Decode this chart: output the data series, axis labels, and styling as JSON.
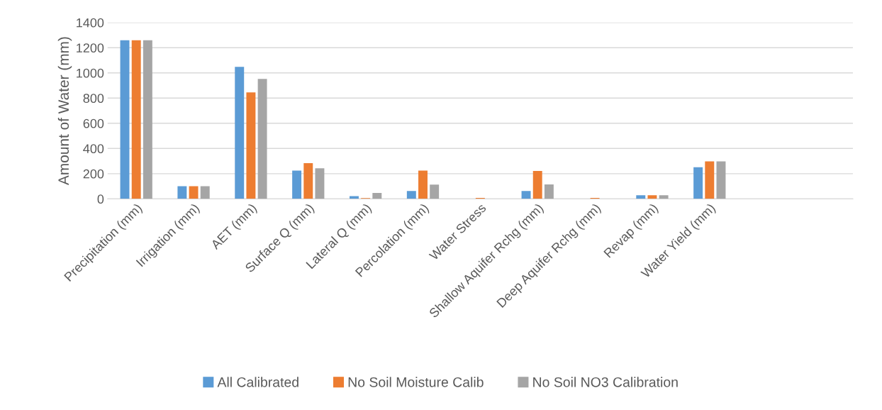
{
  "chart_data": {
    "type": "bar",
    "ylabel": "Amount of Water (mm)",
    "categories": [
      "Precipitation (mm)",
      "Irrigation (mm)",
      "AET (mm)",
      "Surface Q (mm)",
      "Lateral Q (mm)",
      "Percolation (mm)",
      "Water Stress",
      "Shallow Aquifer Rchg (mm)",
      "Deep Aquifer Rchg (mm)",
      "Revap (mm)",
      "Water Yield (mm)",
      null,
      null
    ],
    "series": [
      {
        "name": "All Calibrated",
        "color": "#5b9bd5",
        "values": [
          1260,
          100,
          1048,
          224,
          21,
          62,
          0,
          63,
          0,
          28,
          251,
          null,
          null
        ]
      },
      {
        "name": "No Soil Moisture Calib",
        "color": "#ed7d31",
        "values": [
          1260,
          100,
          845,
          283,
          6,
          224,
          7,
          221,
          7,
          28,
          298,
          null,
          null
        ]
      },
      {
        "name": "No Soil NO3 Calibration",
        "color": "#a5a5a5",
        "values": [
          1260,
          100,
          952,
          242,
          47,
          113,
          0,
          114,
          0,
          28,
          298,
          null,
          null
        ]
      }
    ],
    "ylim": [
      0,
      1400
    ],
    "yticks": [
      0,
      200,
      400,
      600,
      800,
      1000,
      1200,
      1400
    ],
    "grid": "y",
    "legend": "bottom"
  }
}
